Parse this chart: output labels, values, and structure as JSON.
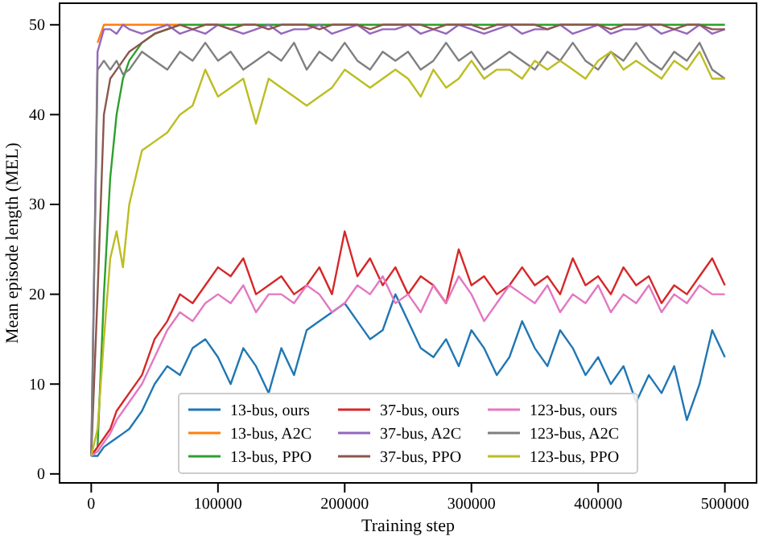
{
  "chart_data": {
    "type": "line",
    "xlabel": "Training step",
    "ylabel": "Mean episode length (MEL)",
    "x": [
      0,
      5000,
      10000,
      15000,
      20000,
      25000,
      30000,
      40000,
      50000,
      60000,
      70000,
      80000,
      90000,
      100000,
      110000,
      120000,
      130000,
      140000,
      150000,
      160000,
      170000,
      180000,
      190000,
      200000,
      210000,
      220000,
      230000,
      240000,
      250000,
      260000,
      270000,
      280000,
      290000,
      300000,
      310000,
      320000,
      330000,
      340000,
      350000,
      360000,
      370000,
      380000,
      390000,
      400000,
      410000,
      420000,
      430000,
      440000,
      450000,
      460000,
      470000,
      480000,
      490000,
      500000
    ],
    "xlim": [
      -25000,
      525000
    ],
    "xticks": [
      0,
      100000,
      200000,
      300000,
      400000,
      500000
    ],
    "ylim": [
      -1,
      52.4
    ],
    "yticks": [
      0,
      10,
      20,
      30,
      40,
      50
    ],
    "grid": false,
    "legend": "bottom",
    "line_style": "solid",
    "marker": "none",
    "series": [
      {
        "name": "13-bus, ours",
        "color": "#1f77b4",
        "values": [
          2,
          2,
          3,
          3.5,
          4,
          4.5,
          5,
          7,
          10,
          12,
          11,
          14,
          15,
          13,
          10,
          14,
          12,
          9,
          14,
          11,
          16,
          17,
          18,
          19,
          17,
          15,
          16,
          20,
          17,
          14,
          13,
          15,
          12,
          16,
          14,
          11,
          13,
          17,
          14,
          12,
          16,
          14,
          11,
          13,
          10,
          12,
          8,
          11,
          9,
          12,
          6,
          10,
          16,
          13
        ]
      },
      {
        "name": "13-bus, A2C",
        "color": "#ff7f0e",
        "values": [
          null,
          48,
          50,
          50,
          50,
          50,
          50,
          50,
          50,
          50,
          50,
          null,
          null,
          null,
          null,
          null,
          null,
          null,
          null,
          null,
          null,
          null,
          null,
          null,
          null,
          null,
          null,
          null,
          null,
          null,
          null,
          null,
          null,
          null,
          null,
          null,
          null,
          null,
          null,
          null,
          null,
          null,
          null,
          null,
          null,
          null,
          null,
          null,
          null,
          null,
          null,
          null,
          null,
          null
        ]
      },
      {
        "name": "13-bus, PPO",
        "color": "#2ca02c",
        "values": [
          2,
          3,
          20,
          33,
          40,
          44,
          46,
          48,
          49,
          49.5,
          50,
          50,
          50,
          50,
          50,
          50,
          50,
          50,
          50,
          50,
          50,
          50,
          50,
          50,
          50,
          50,
          50,
          50,
          50,
          50,
          50,
          50,
          50,
          50,
          50,
          50,
          50,
          50,
          50,
          50,
          50,
          50,
          50,
          50,
          50,
          50,
          50,
          50,
          50,
          50,
          50,
          50,
          50,
          50
        ]
      },
      {
        "name": "37-bus, ours",
        "color": "#d62728",
        "values": [
          2,
          3,
          4,
          5,
          7,
          8,
          9,
          11,
          15,
          17,
          20,
          19,
          21,
          23,
          22,
          24,
          20,
          21,
          22,
          20,
          21,
          23,
          20,
          27,
          22,
          24,
          21,
          23,
          20,
          22,
          21,
          19,
          25,
          21,
          22,
          20,
          21,
          23,
          21,
          22,
          20,
          24,
          21,
          22,
          20,
          23,
          21,
          22,
          19,
          21,
          20,
          22,
          24,
          21
        ]
      },
      {
        "name": "37-bus, A2C",
        "color": "#9467bd",
        "values": [
          2,
          47,
          49.5,
          49.5,
          49,
          50,
          49.5,
          49,
          49.5,
          50,
          49,
          49.5,
          49,
          50,
          49.5,
          49,
          49.5,
          50,
          49,
          49.5,
          49.5,
          50,
          49,
          49.5,
          50,
          49,
          49.5,
          49.5,
          50,
          49,
          49.5,
          49,
          50,
          49.5,
          49,
          49.5,
          50,
          49,
          49.5,
          49.5,
          50,
          49,
          49.5,
          50,
          49,
          49.5,
          49.5,
          50,
          49,
          49.5,
          49,
          50,
          49,
          49.5
        ]
      },
      {
        "name": "37-bus, PPO",
        "color": "#8c564b",
        "values": [
          2,
          20,
          40,
          44,
          45,
          46,
          47,
          48,
          49,
          49.5,
          50,
          49.5,
          50,
          50,
          49.5,
          50,
          50,
          49.5,
          50,
          50,
          50,
          49.5,
          50,
          50,
          50,
          49.5,
          50,
          50,
          50,
          50,
          49.5,
          50,
          50,
          50,
          49.5,
          50,
          50,
          50,
          50,
          49.5,
          50,
          50,
          50,
          50,
          49.5,
          50,
          50,
          50,
          50,
          49.5,
          50,
          50,
          49.5,
          49.5
        ]
      },
      {
        "name": "123-bus, ours",
        "color": "#e377c2",
        "values": [
          2,
          2.5,
          3.5,
          4.5,
          6,
          7,
          8,
          10,
          13,
          16,
          18,
          17,
          19,
          20,
          19,
          21,
          18,
          20,
          20,
          19,
          21,
          20,
          18,
          19,
          21,
          20,
          22,
          19,
          20,
          18,
          21,
          19,
          22,
          20,
          17,
          19,
          21,
          20,
          19,
          21,
          18,
          20,
          19,
          21,
          18,
          20,
          19,
          21,
          18,
          20,
          19,
          21,
          20,
          20
        ]
      },
      {
        "name": "123-bus, A2C",
        "color": "#7f7f7f",
        "values": [
          2,
          45,
          46,
          45,
          46,
          44.5,
          45,
          47,
          46,
          45,
          47,
          46,
          48,
          46,
          47,
          45,
          46,
          47,
          46,
          48,
          45,
          47,
          46,
          48,
          46,
          45,
          47,
          46,
          47,
          45,
          46,
          48,
          46,
          47,
          45,
          46,
          47,
          46,
          45,
          47,
          46,
          48,
          46,
          45,
          47,
          46,
          48,
          46,
          45,
          47,
          46,
          48,
          45,
          44
        ]
      },
      {
        "name": "123-bus, PPO",
        "color": "#bcbd22",
        "values": [
          2,
          5,
          15,
          24,
          27,
          23,
          30,
          36,
          37,
          38,
          40,
          41,
          45,
          42,
          43,
          44,
          39,
          44,
          43,
          42,
          41,
          42,
          43,
          45,
          44,
          43,
          44,
          45,
          44,
          42,
          45,
          43,
          44,
          46,
          44,
          45,
          45,
          44,
          46,
          45,
          46,
          45,
          44,
          46,
          47,
          45,
          46,
          45,
          44,
          46,
          45,
          47,
          44,
          44
        ]
      }
    ]
  }
}
